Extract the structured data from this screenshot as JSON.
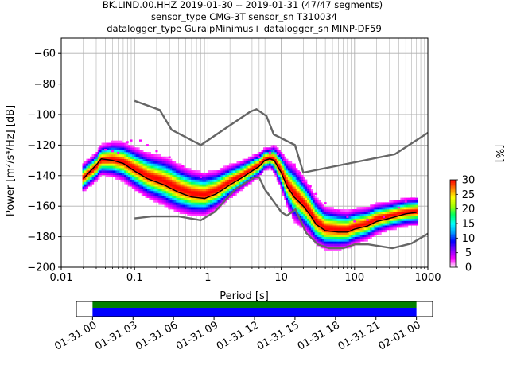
{
  "chart_data": {
    "type": "heatmap",
    "title_lines": [
      "BK.LIND.00.HHZ   2019-01-30 -- 2019-01-31  (47/47 segments)",
      "sensor_type CMG-3T sensor_sn T310034",
      "datalogger_type GuralpMinimus+ datalogger_sn MINP-DF59"
    ],
    "xlabel": "Period [s]",
    "ylabel": "Power [m²/s⁴/Hz] [dB]",
    "x_scale": "log",
    "xlim": [
      0.01,
      1000
    ],
    "ylim": [
      -200,
      -50
    ],
    "x_ticks": [
      0.01,
      0.1,
      1,
      10,
      100,
      1000
    ],
    "x_tick_labels": [
      "0.01",
      "0.1",
      "1",
      "10",
      "100",
      "1000"
    ],
    "y_ticks": [
      -200,
      -180,
      -160,
      -140,
      -120,
      -100,
      -80,
      -60
    ],
    "y_tick_labels": [
      "−200",
      "−180",
      "−160",
      "−140",
      "−120",
      "−100",
      "−80",
      "−60"
    ],
    "grid": true,
    "colorbar": {
      "label": "[%]",
      "range": [
        0,
        30
      ],
      "ticks": [
        0,
        5,
        10,
        15,
        20,
        25,
        30
      ],
      "tick_labels": [
        "0",
        "5",
        "10",
        "15",
        "20",
        "25",
        "30"
      ],
      "colormap": [
        "#ffffff",
        "#ff00ff",
        "#8000ff",
        "#0000ff",
        "#00a0ff",
        "#00ffff",
        "#00ff60",
        "#a0ff00",
        "#ffff00",
        "#ff8000",
        "#ff0000"
      ]
    },
    "mode_curve": [
      [
        0.02,
        -142
      ],
      [
        0.025,
        -137
      ],
      [
        0.03,
        -133
      ],
      [
        0.035,
        -129
      ],
      [
        0.05,
        -130
      ],
      [
        0.07,
        -132
      ],
      [
        0.1,
        -137
      ],
      [
        0.15,
        -142
      ],
      [
        0.25,
        -146
      ],
      [
        0.4,
        -151
      ],
      [
        0.6,
        -154
      ],
      [
        0.9,
        -155
      ],
      [
        1.3,
        -152
      ],
      [
        2,
        -146
      ],
      [
        3,
        -141
      ],
      [
        4,
        -137
      ],
      [
        5,
        -134
      ],
      [
        6,
        -130
      ],
      [
        7,
        -129
      ],
      [
        8,
        -130
      ],
      [
        10,
        -138
      ],
      [
        12,
        -147
      ],
      [
        15,
        -154
      ],
      [
        20,
        -160
      ],
      [
        25,
        -166
      ],
      [
        30,
        -172
      ],
      [
        40,
        -176
      ],
      [
        60,
        -177
      ],
      [
        80,
        -177
      ],
      [
        100,
        -175
      ],
      [
        150,
        -173
      ],
      [
        200,
        -170
      ],
      [
        300,
        -168
      ],
      [
        500,
        -165
      ],
      [
        700,
        -164
      ]
    ],
    "density": {
      "center_offset_db": [
        [
          0.02,
          0
        ],
        [
          0.03,
          -2
        ],
        [
          0.05,
          0
        ],
        [
          0.1,
          1
        ],
        [
          0.3,
          2
        ],
        [
          1,
          2
        ],
        [
          3,
          1
        ],
        [
          7,
          0
        ],
        [
          15,
          2
        ],
        [
          40,
          1
        ],
        [
          100,
          1
        ],
        [
          300,
          1
        ],
        [
          700,
          0
        ]
      ],
      "spread_db": [
        [
          0.02,
          4
        ],
        [
          0.03,
          4
        ],
        [
          0.05,
          5
        ],
        [
          0.1,
          6
        ],
        [
          0.3,
          7
        ],
        [
          1,
          6
        ],
        [
          3,
          4
        ],
        [
          7,
          3
        ],
        [
          15,
          8
        ],
        [
          40,
          6
        ],
        [
          100,
          5
        ],
        [
          300,
          4
        ],
        [
          700,
          4
        ]
      ]
    },
    "outlier_points": [
      [
        0.035,
        -121
      ],
      [
        0.04,
        -123
      ],
      [
        0.045,
        -120
      ],
      [
        0.05,
        -124
      ],
      [
        0.06,
        -125
      ],
      [
        0.08,
        -118
      ],
      [
        0.09,
        -117
      ],
      [
        0.12,
        -117
      ],
      [
        0.15,
        -120
      ],
      [
        0.2,
        -124
      ],
      [
        0.3,
        -128
      ],
      [
        0.45,
        -134
      ],
      [
        0.6,
        -138
      ],
      [
        0.8,
        -141
      ],
      [
        5,
        -128
      ],
      [
        7,
        -125
      ],
      [
        9,
        -126
      ],
      [
        11,
        -130
      ],
      [
        15,
        -133
      ],
      [
        18,
        -138
      ],
      [
        20,
        -144
      ],
      [
        25,
        -147
      ],
      [
        30,
        -152
      ],
      [
        40,
        -158
      ],
      [
        60,
        -163
      ],
      [
        80,
        -167
      ],
      [
        100,
        -170
      ],
      [
        150,
        -169
      ],
      [
        250,
        -167
      ],
      [
        400,
        -161
      ],
      [
        500,
        -157
      ],
      [
        600,
        -155
      ],
      [
        650,
        -155
      ]
    ],
    "nhnm": [
      [
        0.1,
        -91
      ],
      [
        0.22,
        -97
      ],
      [
        0.32,
        -110
      ],
      [
        0.8,
        -120
      ],
      [
        3.8,
        -98
      ],
      [
        4.6,
        -96.5
      ],
      [
        6.3,
        -101
      ],
      [
        7.9,
        -113
      ],
      [
        15.4,
        -120
      ],
      [
        20,
        -138
      ],
      [
        354.8,
        -126
      ],
      [
        1000,
        -112
      ]
    ],
    "nlnm": [
      [
        0.1,
        -168
      ],
      [
        0.17,
        -166.7
      ],
      [
        0.4,
        -166.7
      ],
      [
        0.8,
        -169.2
      ],
      [
        1.24,
        -163.7
      ],
      [
        2.4,
        -148.6
      ],
      [
        4.3,
        -141.1
      ],
      [
        5,
        -141.1
      ],
      [
        6,
        -149
      ],
      [
        10,
        -163.8
      ],
      [
        12,
        -166.2
      ],
      [
        15.6,
        -162.1
      ],
      [
        21.9,
        -177.5
      ],
      [
        31.6,
        -185
      ],
      [
        45,
        -187.5
      ],
      [
        70,
        -187.5
      ],
      [
        101,
        -185
      ],
      [
        154,
        -185
      ],
      [
        328,
        -187.5
      ],
      [
        600,
        -184.4
      ],
      [
        1000,
        -178
      ]
    ],
    "timeline": {
      "start_label": "01-31 00",
      "end_label": "02-01 00",
      "tick_labels": [
        "01-31 00",
        "01-31 03",
        "01-31 06",
        "01-31 09",
        "01-31 12",
        "01-31 15",
        "01-31 18",
        "01-31 21",
        "02-01 00"
      ],
      "tick_hours": [
        0,
        3,
        6,
        9,
        12,
        15,
        18,
        21,
        24
      ],
      "axis_range_hours": [
        -1.2,
        25.2
      ],
      "data_coverage_hours": [
        0,
        24
      ],
      "processed_coverage_hours": [
        0,
        24
      ],
      "data_color": "#0000ff",
      "processed_color": "#008000"
    },
    "colors": {
      "model_curves": "#666666",
      "mode_curve": "#000000",
      "grid": "#b0b0b0"
    }
  }
}
